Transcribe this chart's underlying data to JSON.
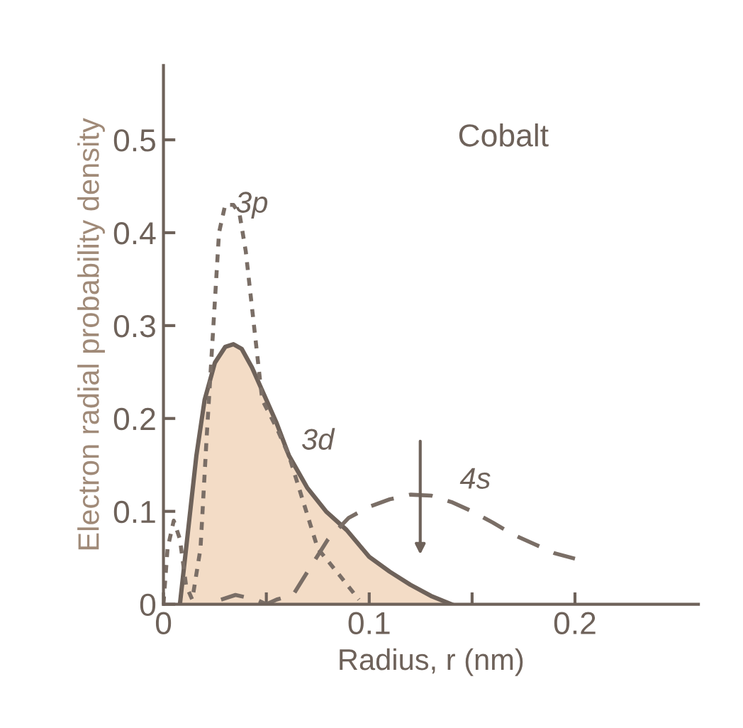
{
  "chart_data": {
    "type": "line",
    "xlabel": "Radius, r (nm)",
    "ylabel": "Electron radial probability density",
    "annotations": [
      "Cobalt"
    ],
    "xlim": [
      0,
      0.26
    ],
    "ylim": [
      0,
      0.58
    ],
    "xticks": [
      0,
      {
        "value": 0.05,
        "label": null
      },
      0.1,
      {
        "value": 0.15,
        "label": null
      },
      0.2
    ],
    "yticks": [
      0,
      0.1,
      0.2,
      0.3,
      0.4,
      0.5
    ],
    "grid": false,
    "legend": false,
    "series": [
      {
        "name": "3p",
        "line_style": "dotted",
        "color": "#7a6e66",
        "x": [
          0,
          0.002,
          0.005,
          0.008,
          0.011,
          0.014,
          0.018,
          0.021,
          0.024,
          0.027,
          0.03,
          0.034,
          0.037,
          0.04,
          0.043,
          0.048,
          0.055,
          0.061,
          0.068,
          0.075,
          0.086,
          0.095
        ],
        "values": [
          0,
          0.06,
          0.09,
          0.07,
          0.02,
          0.005,
          0.06,
          0.18,
          0.29,
          0.4,
          0.43,
          0.43,
          0.42,
          0.38,
          0.32,
          0.22,
          0.19,
          0.16,
          0.11,
          0.06,
          0.03,
          0.005
        ]
      },
      {
        "name": "3d",
        "type": "area",
        "line_style": "solid",
        "color": "#f3dcc6",
        "x": [
          0.008,
          0.012,
          0.016,
          0.02,
          0.025,
          0.03,
          0.034,
          0.038,
          0.043,
          0.05,
          0.055,
          0.061,
          0.07,
          0.079,
          0.089,
          0.1,
          0.11,
          0.12,
          0.13,
          0.14
        ],
        "values": [
          0,
          0.08,
          0.16,
          0.22,
          0.26,
          0.277,
          0.28,
          0.275,
          0.255,
          0.22,
          0.195,
          0.16,
          0.125,
          0.1,
          0.08,
          0.051,
          0.035,
          0.021,
          0.009,
          0
        ]
      },
      {
        "name": "4s",
        "line_style": "dashed",
        "color": "#7a6e66",
        "x": [
          0.028,
          0.035,
          0.045,
          0.05,
          0.055,
          0.063,
          0.07,
          0.08,
          0.09,
          0.1,
          0.11,
          0.12,
          0.13,
          0.14,
          0.15,
          0.16,
          0.17,
          0.18,
          0.19,
          0.2
        ],
        "values": [
          0.005,
          0.01,
          0.005,
          0,
          0.005,
          0.01,
          0.035,
          0.07,
          0.093,
          0.105,
          0.113,
          0.118,
          0.117,
          0.11,
          0.1,
          0.088,
          0.075,
          0.065,
          0.055,
          0.049
        ]
      }
    ]
  }
}
